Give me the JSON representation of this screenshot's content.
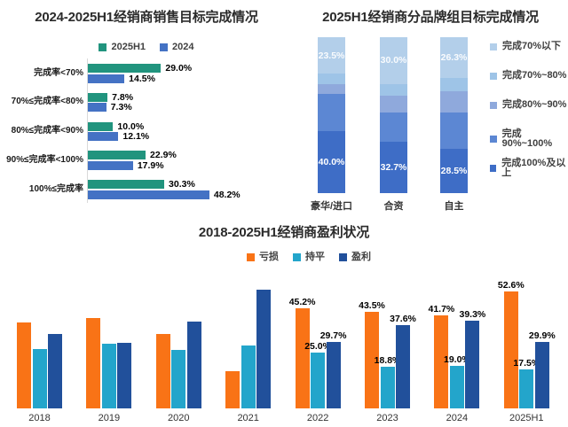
{
  "page": {
    "background": "#ffffff"
  },
  "chart_data": [
    {
      "id": "sales-target",
      "type": "bar",
      "orientation": "horizontal",
      "title": "2024-2025H1经销商销售目标完成情况",
      "categories": [
        "完成率<70%",
        "70%≤完成率<80%",
        "80%≤完成率<90%",
        "90%≤完成率<100%",
        "100%≤完成率"
      ],
      "series": [
        {
          "name": "2025H1",
          "color": "#21947E",
          "values": [
            29.0,
            7.8,
            10.0,
            22.9,
            30.3
          ]
        },
        {
          "name": "2024",
          "color": "#4472C4",
          "values": [
            14.5,
            7.3,
            12.1,
            17.9,
            48.2
          ]
        }
      ],
      "value_suffix": "%",
      "xlim": [
        0,
        50
      ],
      "legend_position": "top",
      "grid": false
    },
    {
      "id": "brand-group-target",
      "type": "bar",
      "orientation": "vertical",
      "stacked": true,
      "stacked_total": 100,
      "title": "2025H1经销商分品牌组目标完成情况",
      "categories": [
        "豪华/进口",
        "合资",
        "自主"
      ],
      "series_bottom_to_top": [
        {
          "name": "完成100%及以上",
          "color": "#3E6DC6",
          "values": [
            40.0,
            32.7,
            28.5
          ],
          "labels_visible": true
        },
        {
          "name": "完成90%~100%",
          "color": "#5C87D3",
          "values": [
            23.5,
            19.0,
            23.4
          ],
          "labels_visible": false
        },
        {
          "name": "完成80%~90%",
          "color": "#8FA9DC",
          "values": [
            6.5,
            11.0,
            13.3
          ],
          "labels_visible": false
        },
        {
          "name": "完成70%~80%",
          "color": "#9EC4E7",
          "values": [
            6.5,
            7.3,
            8.5
          ],
          "labels_visible": false
        },
        {
          "name": "完成70%以下",
          "color": "#B3CFEA",
          "values": [
            23.5,
            30.0,
            26.3
          ],
          "labels_visible": true
        }
      ],
      "legend_order_top_first": [
        "完成70%以下",
        "完成70%~80%",
        "完成80%~90%",
        "完成90%~100%",
        "完成100%及以上"
      ],
      "value_suffix": "%",
      "legend_position": "right",
      "grid": false
    },
    {
      "id": "dealer-profit",
      "type": "bar",
      "orientation": "vertical",
      "grouped": true,
      "title": "2018-2025H1经销商盈利状况",
      "categories": [
        "2018",
        "2019",
        "2020",
        "2021",
        "2022",
        "2023",
        "2024",
        "2025H1"
      ],
      "series": [
        {
          "name": "亏损",
          "color": "#F97316",
          "values": [
            38.8,
            40.7,
            33.5,
            16.9,
            45.2,
            43.5,
            41.7,
            52.6
          ]
        },
        {
          "name": "持平",
          "color": "#23A5CB",
          "values": [
            26.8,
            29.0,
            26.4,
            28.2,
            25.0,
            18.8,
            19.0,
            17.5
          ]
        },
        {
          "name": "盈利",
          "color": "#21509B",
          "values": [
            33.4,
            29.5,
            39.0,
            53.5,
            29.7,
            37.6,
            39.3,
            29.9
          ]
        }
      ],
      "labels_visible_for": [
        "2022",
        "2023",
        "2024",
        "2025H1"
      ],
      "value_suffix": "%",
      "legend_position": "top",
      "grid": false
    }
  ]
}
